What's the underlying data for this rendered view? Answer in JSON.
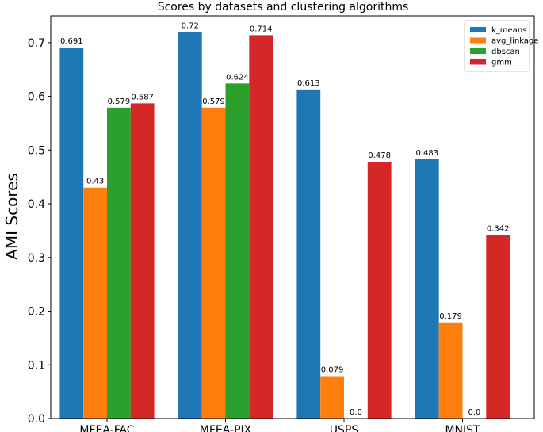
{
  "chart_data": {
    "type": "bar",
    "title": "Scores by datasets and clustering algorithms",
    "xlabel": "",
    "ylabel": "AMI Scores",
    "ylim": [
      0,
      0.75
    ],
    "yticks": [
      "0.0",
      "0.1",
      "0.2",
      "0.3",
      "0.4",
      "0.5",
      "0.6",
      "0.7"
    ],
    "categories": [
      "MFEA-FAC",
      "MFEA-PIX",
      "USPS",
      "MNIST"
    ],
    "legend_position": "top-right",
    "series": [
      {
        "name": "k_means",
        "color": "#1f77b4",
        "values": [
          0.691,
          0.72,
          0.613,
          0.483
        ],
        "labels": [
          "0.691",
          "0.72",
          "0.613",
          "0.483"
        ]
      },
      {
        "name": "avg_linkage",
        "color": "#ff7f0e",
        "values": [
          0.43,
          0.579,
          0.079,
          0.179
        ],
        "labels": [
          "0.43",
          "0.579",
          "0.079",
          "0.179"
        ]
      },
      {
        "name": "dbscan",
        "color": "#2ca02c",
        "values": [
          0.579,
          0.624,
          0.0,
          0.0
        ],
        "labels": [
          "0.579",
          "0.624",
          "0.0",
          "0.0"
        ]
      },
      {
        "name": "gmm",
        "color": "#d62728",
        "values": [
          0.587,
          0.714,
          0.478,
          0.342
        ],
        "labels": [
          "0.587",
          "0.714",
          "0.478",
          "0.342"
        ]
      }
    ]
  }
}
